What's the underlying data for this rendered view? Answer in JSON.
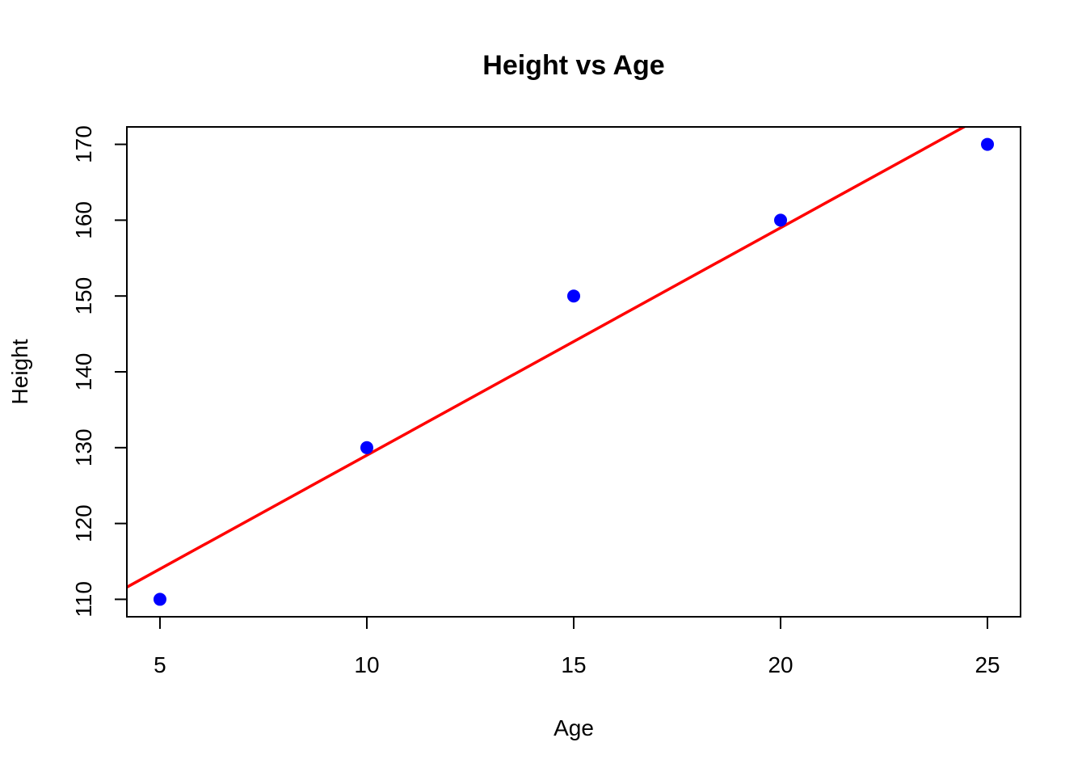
{
  "chart_data": {
    "type": "scatter",
    "title": "Height vs Age",
    "xlabel": "Age",
    "ylabel": "Height",
    "xlim": [
      4.2,
      25.8
    ],
    "ylim": [
      107.7,
      172.3
    ],
    "x_ticks": [
      5,
      10,
      15,
      20,
      25
    ],
    "y_ticks": [
      110,
      120,
      130,
      140,
      150,
      160,
      170
    ],
    "grid": false,
    "legend": "none",
    "points": [
      {
        "x": 5,
        "y": 110
      },
      {
        "x": 10,
        "y": 130
      },
      {
        "x": 15,
        "y": 150
      },
      {
        "x": 20,
        "y": 160
      },
      {
        "x": 25,
        "y": 170
      }
    ],
    "point_color": "#0000ff",
    "fit_line": {
      "slope": 3.0,
      "intercept": 99.0,
      "color": "#ff0000"
    }
  }
}
